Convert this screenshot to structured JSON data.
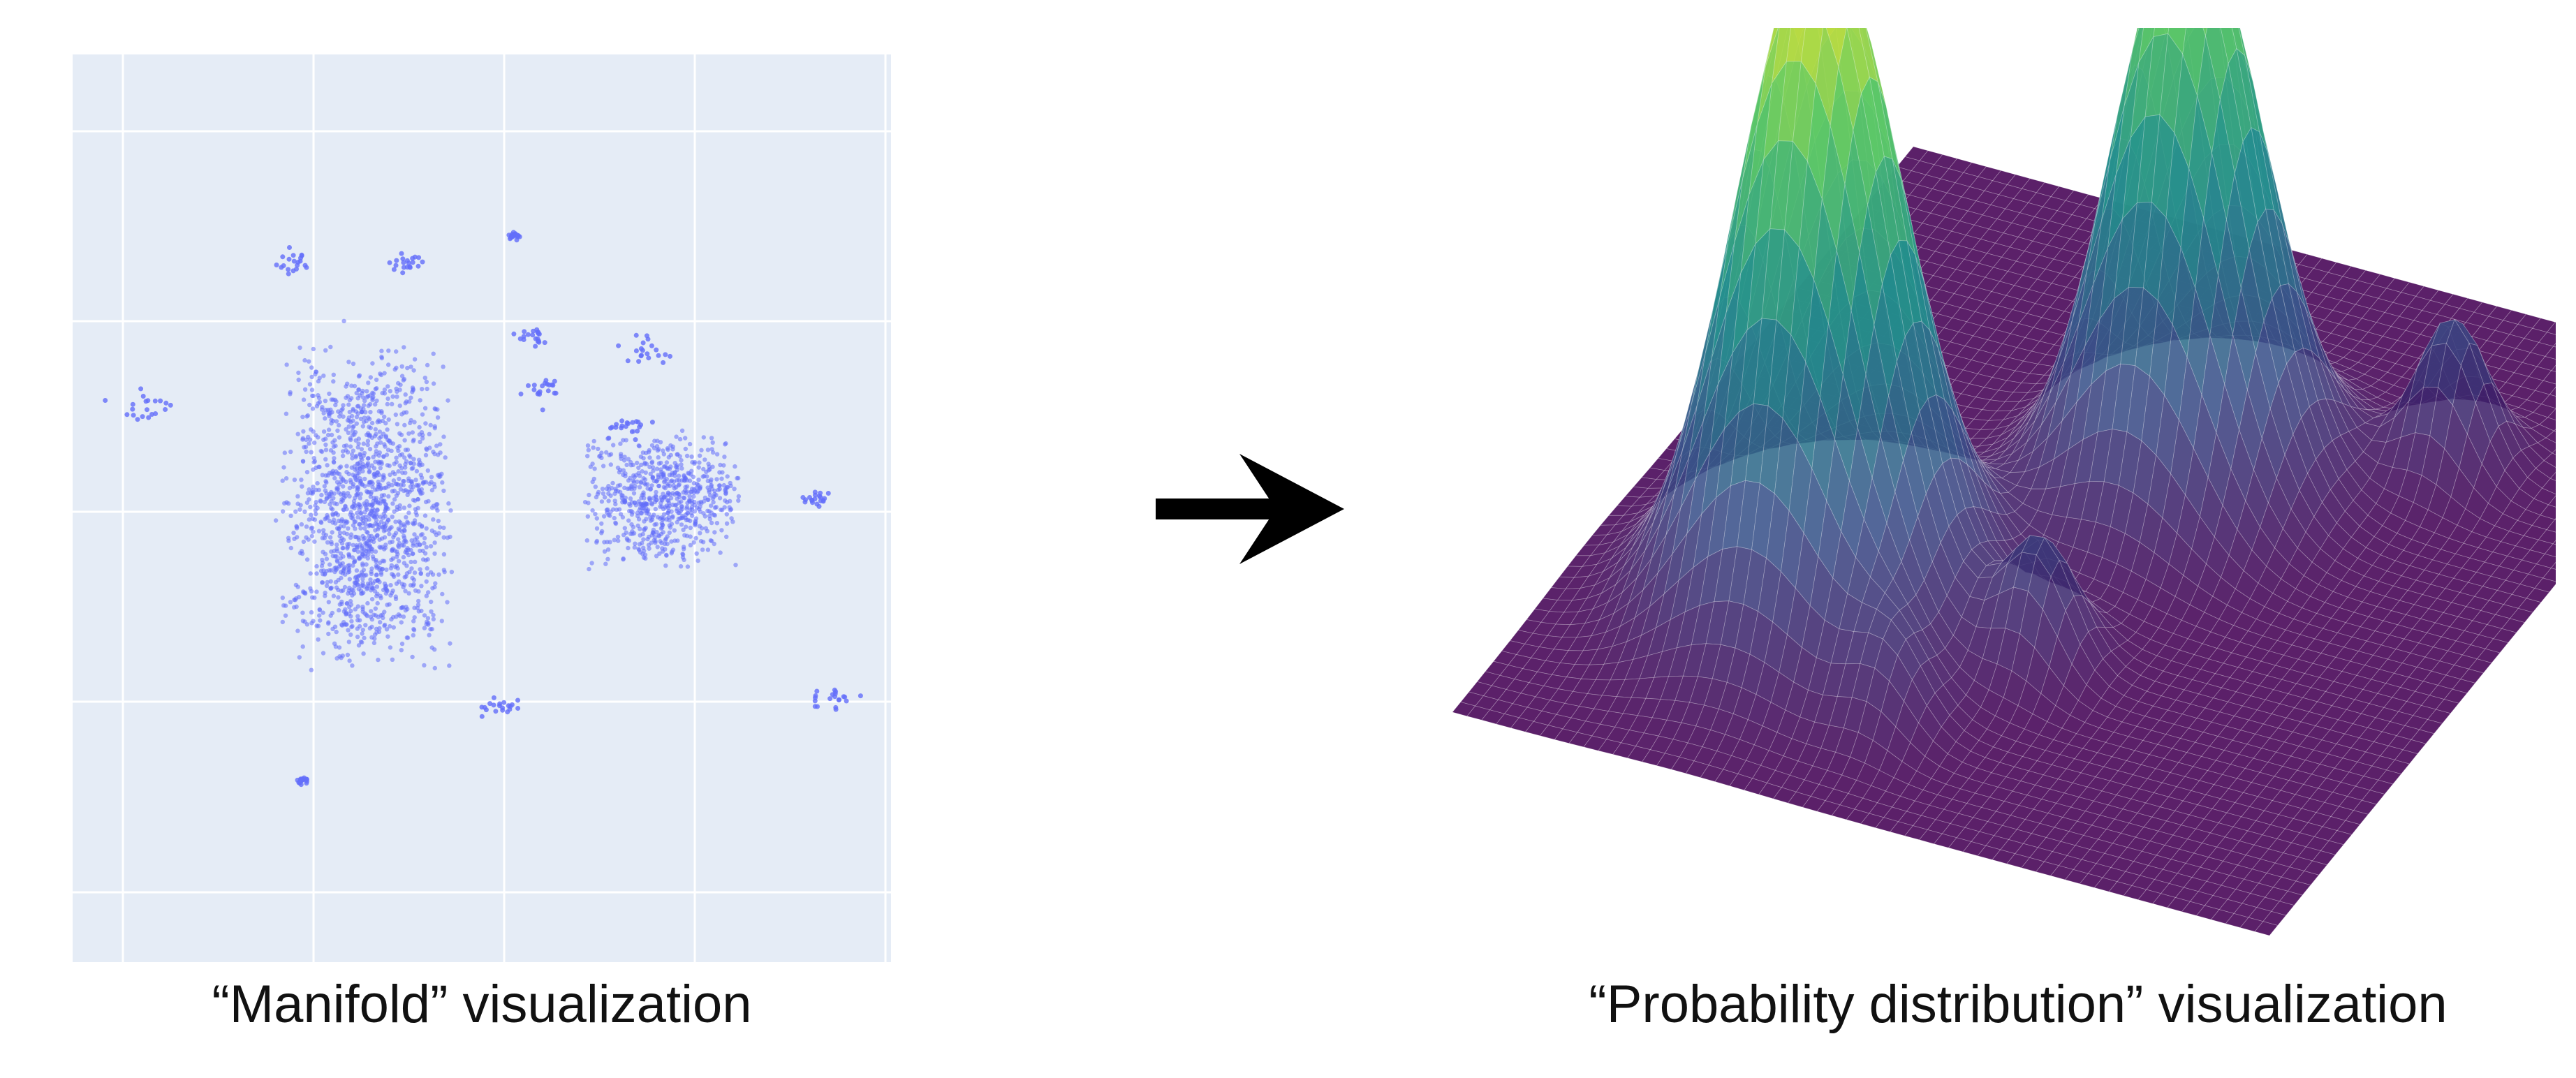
{
  "left_panel": {
    "caption": "“Manifold” visualization",
    "plot_background": "#E5ECF6",
    "grid_color": "#FFFFFF",
    "point_color": "#636EFA",
    "chart_data": {
      "type": "scatter",
      "title": "",
      "xlabel": "",
      "ylabel": "",
      "grid": true,
      "clusters": [
        {
          "center": [
            0.36,
            0.5
          ],
          "spread": [
            0.11,
            0.19
          ],
          "count": 1500
        },
        {
          "center": [
            0.72,
            0.49
          ],
          "spread": [
            0.1,
            0.08
          ],
          "count": 700
        }
      ]
    }
  },
  "arrow": {
    "icon": "right-arrow-icon",
    "color": "#000000"
  },
  "right_panel": {
    "caption": "“Probability distribution” visualization",
    "colormap": [
      "#440154",
      "#3B528B",
      "#21908C",
      "#5DC963",
      "#FDE725"
    ],
    "chart_data": {
      "type": "surface",
      "title": "",
      "peaks": [
        {
          "x": 0.3,
          "y": 0.28,
          "height": 1.0,
          "width": 0.09
        },
        {
          "x": 0.62,
          "y": 0.55,
          "height": 0.86,
          "width": 0.08
        },
        {
          "x": 0.3,
          "y": 0.55,
          "height": 0.18,
          "width": 0.04
        },
        {
          "x": 0.75,
          "y": 0.8,
          "height": 0.22,
          "width": 0.04
        },
        {
          "x": 0.15,
          "y": 0.45,
          "height": 0.1,
          "width": 0.04
        }
      ]
    }
  }
}
